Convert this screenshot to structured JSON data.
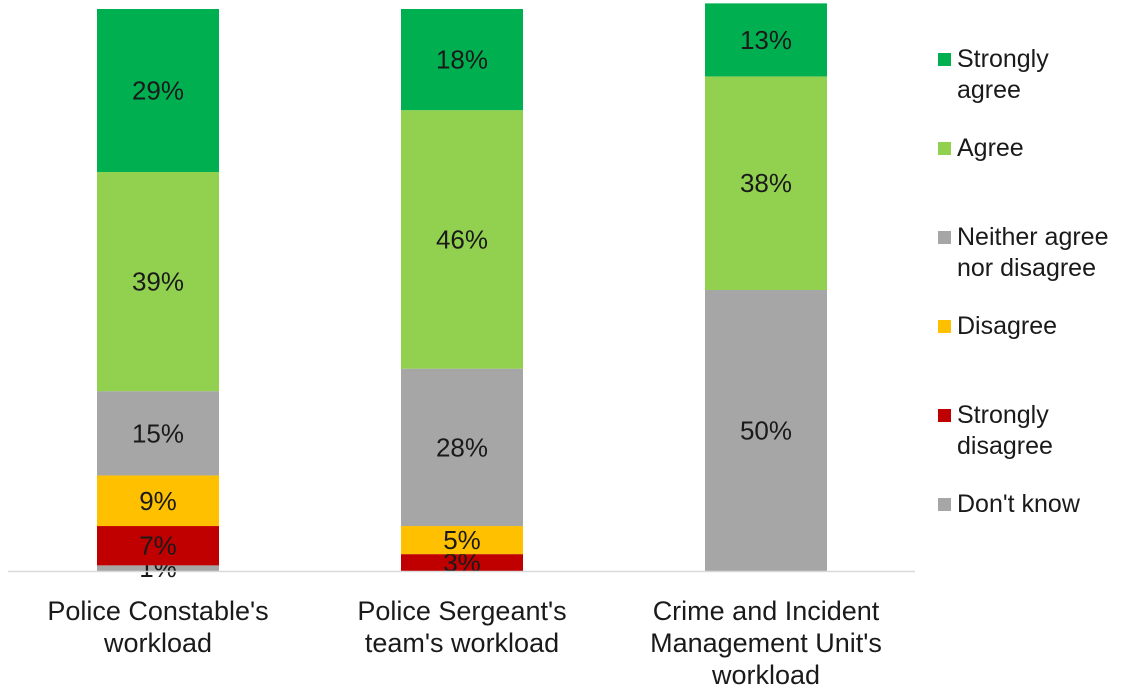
{
  "chart_data": {
    "type": "bar",
    "stacked": true,
    "orientation": "vertical",
    "categories": [
      "Police Constable's workload",
      "Police Sergeant's team's workload",
      "Crime and Incident Management Unit's workload"
    ],
    "category_lines": [
      [
        "Police Constable's",
        "workload"
      ],
      [
        "Police Sergeant's",
        "team's workload"
      ],
      [
        "Crime and Incident",
        "Management Unit's",
        "workload"
      ]
    ],
    "series": [
      {
        "name": "Don't know",
        "color": "#a6a6a6",
        "values": [
          1,
          0,
          0
        ],
        "labels": [
          "1%",
          "",
          ""
        ]
      },
      {
        "name": "Strongly disagree",
        "color": "#c00000",
        "values": [
          7,
          3,
          0
        ],
        "labels": [
          "7%",
          "3%",
          ""
        ]
      },
      {
        "name": "Disagree",
        "color": "#ffc000",
        "values": [
          9,
          5,
          0
        ],
        "labels": [
          "9%",
          "5%",
          ""
        ]
      },
      {
        "name": "Neither agree nor disagree",
        "color": "#a6a6a6",
        "values": [
          15,
          28,
          50
        ],
        "labels": [
          "15%",
          "28%",
          "50%"
        ]
      },
      {
        "name": "Agree",
        "color": "#92d050",
        "values": [
          39,
          46,
          38
        ],
        "labels": [
          "39%",
          "46%",
          "38%"
        ]
      },
      {
        "name": "Strongly agree",
        "color": "#00b050",
        "values": [
          29,
          18,
          13
        ],
        "labels": [
          "29%",
          "18%",
          "13%"
        ]
      }
    ],
    "legend": {
      "position": "right",
      "items": [
        {
          "lines": [
            "Strongly",
            "agree"
          ],
          "color": "#00b050"
        },
        {
          "lines": [
            "Agree"
          ],
          "color": "#92d050"
        },
        {
          "lines": [
            "Neither agree",
            "nor disagree"
          ],
          "color": "#a6a6a6"
        },
        {
          "lines": [
            "Disagree"
          ],
          "color": "#ffc000"
        },
        {
          "lines": [
            "Strongly",
            "disagree"
          ],
          "color": "#c00000"
        },
        {
          "lines": [
            "Don't know"
          ],
          "color": "#a6a6a6"
        }
      ]
    },
    "ylim": [
      0,
      100
    ],
    "grid": false,
    "axis_color": "#d9d9d9"
  }
}
